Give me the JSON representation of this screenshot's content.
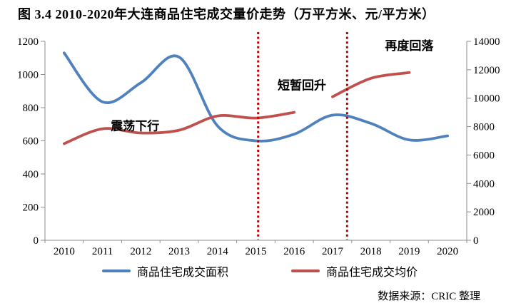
{
  "title": "图 3.4  2010-2020年大连商品住宅成交量价走势（万平方米、元/平方米）",
  "source": "数据来源：CRIC 整理",
  "chart_data": {
    "type": "line",
    "x": [
      2010,
      2011,
      2012,
      2013,
      2014,
      2015,
      2016,
      2017,
      2018,
      2019,
      2020
    ],
    "left_axis": {
      "min": 0,
      "max": 1200,
      "step": 200
    },
    "right_axis": {
      "min": 0,
      "max": 14000,
      "step": 2000
    },
    "grid": false,
    "legend_position": "bottom",
    "series": [
      {
        "name": "商品住宅成交面积",
        "axis": "left",
        "color": "#4F81BD",
        "values": [
          1130,
          835,
          950,
          1105,
          690,
          600,
          640,
          755,
          705,
          605,
          630
        ]
      },
      {
        "name": "商品住宅成交均价",
        "axis": "right",
        "color": "#C0504D",
        "gap_after": 2016,
        "values": [
          6800,
          7850,
          7550,
          7750,
          8750,
          8600,
          9000,
          10100,
          11400,
          11800,
          null
        ]
      }
    ],
    "annotations": [
      {
        "text": "震荡下行",
        "year": 2011.85,
        "value": 690
      },
      {
        "text": "短暂回升",
        "year": 2016.2,
        "value": 935
      },
      {
        "text": "再度回落",
        "year": 2019.0,
        "value": 1175
      }
    ],
    "vlines": {
      "years": [
        2015.06,
        2017.38
      ],
      "color": "#C00000"
    },
    "axis_color": "#8E8E8E",
    "text_color": "#000000"
  }
}
